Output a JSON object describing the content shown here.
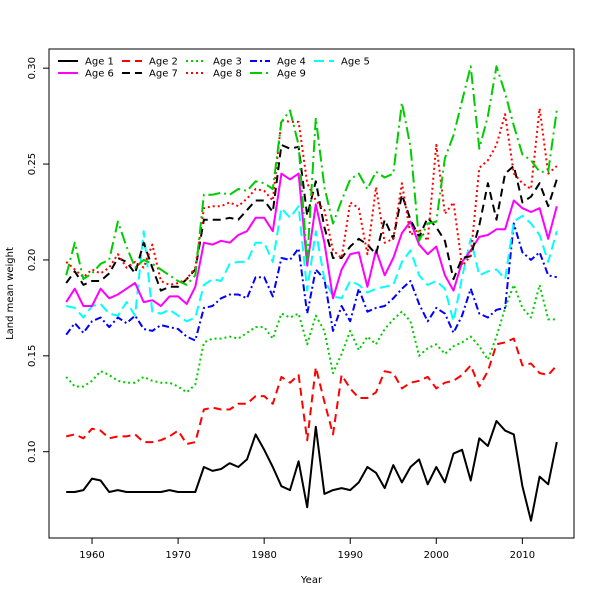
{
  "chart_data": {
    "type": "line",
    "xlabel": "Year",
    "ylabel": "Land mean weight",
    "xlim": [
      1955,
      2016
    ],
    "ylim": [
      0.055,
      0.31
    ],
    "x_ticks": [
      1960,
      1970,
      1980,
      1990,
      2000,
      2010
    ],
    "y_ticks": [
      0.1,
      0.15,
      0.2,
      0.25,
      0.3
    ],
    "y_tick_labels": [
      "0.10",
      "0.15",
      "0.20",
      "0.25",
      "0.30"
    ],
    "legend_position": "top-left",
    "grid": false,
    "x": [
      1957,
      1958,
      1959,
      1960,
      1961,
      1962,
      1963,
      1964,
      1965,
      1966,
      1967,
      1968,
      1969,
      1970,
      1971,
      1972,
      1973,
      1974,
      1975,
      1976,
      1977,
      1978,
      1979,
      1980,
      1981,
      1982,
      1983,
      1984,
      1985,
      1986,
      1987,
      1988,
      1989,
      1990,
      1991,
      1992,
      1993,
      1994,
      1995,
      1996,
      1997,
      1998,
      1999,
      2000,
      2001,
      2002,
      2003,
      2004,
      2005,
      2006,
      2007,
      2008,
      2009,
      2010,
      2011,
      2012,
      2013,
      2014
    ],
    "series": [
      {
        "name": "Age 1",
        "color": "#000000",
        "dash": "solid",
        "values": [
          0.079,
          0.079,
          0.08,
          0.086,
          0.085,
          0.079,
          0.08,
          0.079,
          0.079,
          0.079,
          0.079,
          0.079,
          0.08,
          0.079,
          0.079,
          0.079,
          0.092,
          0.09,
          0.091,
          0.094,
          0.092,
          0.096,
          0.109,
          0.101,
          0.092,
          0.082,
          0.08,
          0.095,
          0.071,
          0.113,
          0.078,
          0.08,
          0.081,
          0.08,
          0.084,
          0.092,
          0.089,
          0.081,
          0.093,
          0.084,
          0.092,
          0.096,
          0.083,
          0.092,
          0.084,
          0.099,
          0.101,
          0.085,
          0.107,
          0.103,
          0.116,
          0.111,
          0.109,
          0.082,
          0.064,
          0.087,
          0.083,
          0.105
        ]
      },
      {
        "name": "Age 2",
        "color": "#ff0000",
        "dash": "8,5",
        "values": [
          0.108,
          0.109,
          0.107,
          0.112,
          0.111,
          0.107,
          0.108,
          0.108,
          0.109,
          0.105,
          0.105,
          0.106,
          0.108,
          0.111,
          0.104,
          0.105,
          0.122,
          0.123,
          0.122,
          0.122,
          0.125,
          0.125,
          0.129,
          0.129,
          0.125,
          0.139,
          0.136,
          0.14,
          0.106,
          0.144,
          0.126,
          0.109,
          0.14,
          0.133,
          0.128,
          0.128,
          0.131,
          0.142,
          0.141,
          0.133,
          0.136,
          0.137,
          0.139,
          0.133,
          0.136,
          0.137,
          0.14,
          0.145,
          0.134,
          0.142,
          0.156,
          0.157,
          0.159,
          0.145,
          0.146,
          0.141,
          0.14,
          0.145
        ]
      },
      {
        "name": "Age 3",
        "color": "#00cc00",
        "dash": "2,3",
        "values": [
          0.139,
          0.134,
          0.134,
          0.137,
          0.142,
          0.14,
          0.137,
          0.136,
          0.136,
          0.139,
          0.137,
          0.136,
          0.136,
          0.134,
          0.131,
          0.135,
          0.157,
          0.159,
          0.159,
          0.16,
          0.159,
          0.162,
          0.165,
          0.165,
          0.159,
          0.172,
          0.17,
          0.172,
          0.156,
          0.171,
          0.163,
          0.141,
          0.151,
          0.163,
          0.153,
          0.16,
          0.156,
          0.164,
          0.169,
          0.173,
          0.168,
          0.15,
          0.154,
          0.156,
          0.151,
          0.155,
          0.157,
          0.16,
          0.155,
          0.148,
          0.16,
          0.175,
          0.187,
          0.175,
          0.17,
          0.187,
          0.169,
          0.169
        ]
      },
      {
        "name": "Age 4",
        "color": "#0000ff",
        "dash": "7,3,2,3",
        "values": [
          0.161,
          0.167,
          0.162,
          0.168,
          0.17,
          0.165,
          0.17,
          0.167,
          0.171,
          0.164,
          0.163,
          0.166,
          0.165,
          0.164,
          0.16,
          0.158,
          0.175,
          0.176,
          0.18,
          0.182,
          0.182,
          0.18,
          0.191,
          0.191,
          0.181,
          0.201,
          0.2,
          0.206,
          0.172,
          0.195,
          0.19,
          0.163,
          0.176,
          0.168,
          0.185,
          0.173,
          0.175,
          0.176,
          0.18,
          0.185,
          0.189,
          0.177,
          0.168,
          0.175,
          0.172,
          0.162,
          0.171,
          0.185,
          0.172,
          0.17,
          0.174,
          0.175,
          0.219,
          0.204,
          0.2,
          0.204,
          0.192,
          0.191
        ]
      },
      {
        "name": "Age 5",
        "color": "#00ffff",
        "dash": "10,5",
        "values": [
          0.176,
          0.175,
          0.17,
          0.176,
          0.177,
          0.172,
          0.171,
          0.178,
          0.171,
          0.215,
          0.173,
          0.172,
          0.174,
          0.171,
          0.168,
          0.17,
          0.187,
          0.19,
          0.189,
          0.198,
          0.199,
          0.199,
          0.209,
          0.209,
          0.199,
          0.227,
          0.222,
          0.228,
          0.184,
          0.215,
          0.19,
          0.181,
          0.18,
          0.189,
          0.187,
          0.183,
          0.185,
          0.186,
          0.187,
          0.199,
          0.205,
          0.192,
          0.187,
          0.189,
          0.185,
          0.168,
          0.191,
          0.211,
          0.192,
          0.194,
          0.195,
          0.19,
          0.22,
          0.223,
          0.219,
          0.213,
          0.199,
          0.215
        ]
      },
      {
        "name": "Age 6",
        "color": "#ff00ff",
        "dash": "solid",
        "values": [
          0.178,
          0.185,
          0.176,
          0.176,
          0.185,
          0.18,
          0.182,
          0.185,
          0.188,
          0.178,
          0.179,
          0.176,
          0.181,
          0.181,
          0.177,
          0.186,
          0.209,
          0.208,
          0.21,
          0.209,
          0.213,
          0.215,
          0.222,
          0.222,
          0.215,
          0.245,
          0.242,
          0.245,
          0.197,
          0.229,
          0.209,
          0.18,
          0.195,
          0.203,
          0.204,
          0.186,
          0.205,
          0.192,
          0.201,
          0.214,
          0.22,
          0.208,
          0.203,
          0.207,
          0.192,
          0.184,
          0.199,
          0.205,
          0.212,
          0.213,
          0.216,
          0.216,
          0.231,
          0.227,
          0.225,
          0.227,
          0.211,
          0.228
        ]
      },
      {
        "name": "Age 7",
        "color": "#000000",
        "dash": "8,5",
        "values": [
          0.188,
          0.194,
          0.187,
          0.189,
          0.189,
          0.193,
          0.201,
          0.199,
          0.193,
          0.209,
          0.196,
          0.184,
          0.186,
          0.186,
          0.19,
          0.195,
          0.221,
          0.221,
          0.221,
          0.222,
          0.221,
          0.226,
          0.231,
          0.231,
          0.225,
          0.26,
          0.258,
          0.259,
          0.223,
          0.241,
          0.217,
          0.201,
          0.201,
          0.207,
          0.211,
          0.208,
          0.203,
          0.221,
          0.211,
          0.234,
          0.221,
          0.212,
          0.222,
          0.217,
          0.21,
          0.19,
          0.201,
          0.202,
          0.218,
          0.24,
          0.221,
          0.245,
          0.249,
          0.23,
          0.233,
          0.24,
          0.228,
          0.242
        ]
      },
      {
        "name": "Age 8",
        "color": "#ff0000",
        "dash": "2,3",
        "values": [
          0.199,
          0.195,
          0.191,
          0.195,
          0.193,
          0.196,
          0.203,
          0.196,
          0.199,
          0.196,
          0.208,
          0.189,
          0.187,
          0.188,
          0.19,
          0.196,
          0.227,
          0.228,
          0.228,
          0.23,
          0.228,
          0.232,
          0.237,
          0.236,
          0.231,
          0.273,
          0.272,
          0.272,
          0.24,
          0.231,
          0.226,
          0.205,
          0.201,
          0.23,
          0.227,
          0.203,
          0.238,
          0.209,
          0.211,
          0.24,
          0.213,
          0.216,
          0.21,
          0.26,
          0.224,
          0.23,
          0.197,
          0.202,
          0.248,
          0.252,
          0.26,
          0.276,
          0.245,
          0.24,
          0.237,
          0.279,
          0.245,
          0.249
        ]
      },
      {
        "name": "Age 9",
        "color": "#00cc00",
        "dash": "12,4,2,4",
        "values": [
          0.192,
          0.209,
          0.19,
          0.193,
          0.198,
          0.2,
          0.22,
          0.207,
          0.196,
          0.2,
          0.198,
          0.195,
          0.192,
          0.189,
          0.187,
          0.192,
          0.234,
          0.234,
          0.235,
          0.234,
          0.237,
          0.236,
          0.241,
          0.24,
          0.237,
          0.272,
          0.278,
          0.26,
          0.199,
          0.274,
          0.238,
          0.219,
          0.231,
          0.242,
          0.245,
          0.237,
          0.246,
          0.243,
          0.245,
          0.282,
          0.259,
          0.21,
          0.219,
          0.22,
          0.253,
          0.265,
          0.283,
          0.301,
          0.258,
          0.275,
          0.301,
          0.287,
          0.27,
          0.255,
          0.252,
          0.246,
          0.246,
          0.278
        ]
      }
    ]
  }
}
